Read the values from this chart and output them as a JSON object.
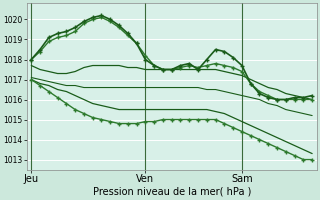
{
  "bg_color": "#cce8dc",
  "plot_bg_color": "#d8f0e8",
  "grid_color": "#ffffff",
  "ylabel_ticks": [
    1013,
    1014,
    1015,
    1016,
    1017,
    1018,
    1019,
    1020
  ],
  "ylim": [
    1012.5,
    1020.8
  ],
  "xlabel": "Pression niveau de la mer( hPa )",
  "xtick_labels": [
    "Jeu",
    "Ven",
    "Sam"
  ],
  "xtick_positions": [
    0,
    13,
    24
  ],
  "total_points": 33,
  "series": [
    {
      "y": [
        1018.0,
        1018.5,
        1019.1,
        1019.3,
        1019.4,
        1019.6,
        1019.9,
        1020.1,
        1020.2,
        1020.0,
        1019.7,
        1019.3,
        1018.8,
        1018.0,
        1017.7,
        1017.5,
        1017.5,
        1017.7,
        1017.8,
        1017.5,
        1018.0,
        1018.5,
        1018.4,
        1018.1,
        1017.7,
        1016.8,
        1016.3,
        1016.1,
        1016.0,
        1016.0,
        1016.1,
        1016.1,
        1016.2
      ],
      "color": "#1a5c1a",
      "lw": 1.2,
      "marker": "+",
      "ms": 3.5,
      "zorder": 5
    },
    {
      "y": [
        1018.0,
        1018.4,
        1018.9,
        1019.1,
        1019.2,
        1019.4,
        1019.8,
        1020.0,
        1020.1,
        1019.9,
        1019.6,
        1019.2,
        1018.8,
        1018.2,
        1017.7,
        1017.5,
        1017.5,
        1017.6,
        1017.7,
        1017.6,
        1017.7,
        1017.8,
        1017.7,
        1017.6,
        1017.4,
        1016.8,
        1016.4,
        1016.2,
        1016.0,
        1016.0,
        1016.0,
        1016.0,
        1016.0
      ],
      "color": "#2d7a2d",
      "lw": 1.0,
      "marker": "+",
      "ms": 3.5,
      "zorder": 4
    },
    {
      "y": [
        1017.7,
        1017.5,
        1017.4,
        1017.3,
        1017.3,
        1017.4,
        1017.6,
        1017.7,
        1017.7,
        1017.7,
        1017.7,
        1017.6,
        1017.6,
        1017.5,
        1017.5,
        1017.5,
        1017.5,
        1017.5,
        1017.5,
        1017.5,
        1017.5,
        1017.5,
        1017.4,
        1017.3,
        1017.2,
        1017.0,
        1016.8,
        1016.6,
        1016.5,
        1016.3,
        1016.2,
        1016.1,
        1016.0
      ],
      "color": "#1a5c1a",
      "lw": 0.9,
      "marker": null,
      "ms": 0,
      "zorder": 3
    },
    {
      "y": [
        1017.1,
        1017.0,
        1016.9,
        1016.8,
        1016.7,
        1016.7,
        1016.6,
        1016.6,
        1016.6,
        1016.6,
        1016.6,
        1016.6,
        1016.6,
        1016.6,
        1016.6,
        1016.6,
        1016.6,
        1016.6,
        1016.6,
        1016.6,
        1016.5,
        1016.5,
        1016.4,
        1016.3,
        1016.2,
        1016.1,
        1016.0,
        1015.8,
        1015.7,
        1015.5,
        1015.4,
        1015.3,
        1015.2
      ],
      "color": "#1a5c1a",
      "lw": 0.8,
      "marker": null,
      "ms": 0,
      "zorder": 2
    },
    {
      "y": [
        1017.0,
        1016.8,
        1016.7,
        1016.5,
        1016.4,
        1016.2,
        1016.0,
        1015.8,
        1015.7,
        1015.6,
        1015.5,
        1015.5,
        1015.5,
        1015.5,
        1015.5,
        1015.5,
        1015.5,
        1015.5,
        1015.5,
        1015.5,
        1015.5,
        1015.4,
        1015.3,
        1015.1,
        1014.9,
        1014.7,
        1014.5,
        1014.3,
        1014.1,
        1013.9,
        1013.7,
        1013.5,
        1013.3
      ],
      "color": "#1a5c1a",
      "lw": 0.9,
      "marker": null,
      "ms": 0,
      "zorder": 2
    },
    {
      "y": [
        1017.0,
        1016.7,
        1016.4,
        1016.1,
        1015.8,
        1015.5,
        1015.3,
        1015.1,
        1015.0,
        1014.9,
        1014.8,
        1014.8,
        1014.8,
        1014.9,
        1014.9,
        1015.0,
        1015.0,
        1015.0,
        1015.0,
        1015.0,
        1015.0,
        1015.0,
        1014.8,
        1014.6,
        1014.4,
        1014.2,
        1014.0,
        1013.8,
        1013.6,
        1013.4,
        1013.2,
        1013.0,
        1013.0
      ],
      "color": "#2d7a2d",
      "lw": 1.0,
      "marker": "+",
      "ms": 3.5,
      "zorder": 3
    }
  ],
  "vline_color": "#3a6a3a",
  "vline_lw": 0.8
}
